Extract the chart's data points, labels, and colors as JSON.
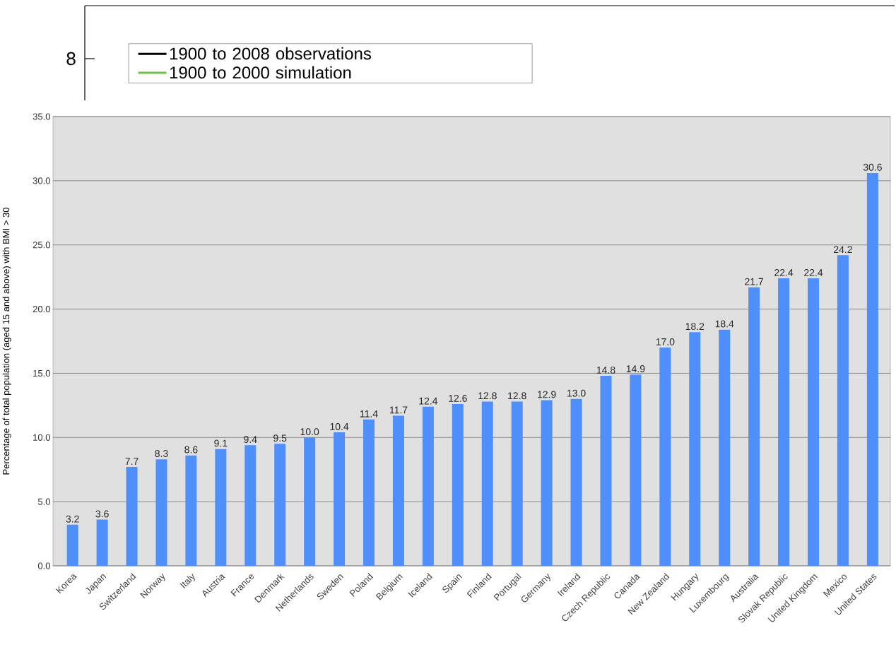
{
  "chart_data": [
    {
      "type": "other",
      "annotations": [
        "8"
      ],
      "legend": "top left",
      "series": [
        {
          "name": "1900 to 2008 observations",
          "color": "#000000"
        },
        {
          "name": "1900 to 2000 simulation",
          "color": "#6dbf4b"
        }
      ]
    },
    {
      "type": "bar",
      "ylabel": "Percentage of total population (aged 15 and above) with BMI > 30",
      "categories": [
        "Korea",
        "Japan",
        "Switzerland",
        "Norway",
        "Italy",
        "Austria",
        "France",
        "Denmark",
        "Netherlands",
        "Sweden",
        "Poland",
        "Belgium",
        "Iceland",
        "Spain",
        "Finland",
        "Portugal",
        "Germany",
        "Ireland",
        "Czech Republic",
        "Canada",
        "New Zealand",
        "Hungary",
        "Luxembourg",
        "Australia",
        "Slovak Republic",
        "United Kingdom",
        "Mexico",
        "United States"
      ],
      "values": [
        3.2,
        3.6,
        7.7,
        8.3,
        8.6,
        9.1,
        9.4,
        9.5,
        10.0,
        10.4,
        11.4,
        11.7,
        12.4,
        12.6,
        12.8,
        12.8,
        12.9,
        13.0,
        14.8,
        14.9,
        17.0,
        18.2,
        18.4,
        21.7,
        22.4,
        22.4,
        24.2,
        30.6
      ],
      "value_labels": [
        "3.2",
        "3.6",
        "7.7",
        "8.3",
        "8.6",
        "9.1",
        "9.4",
        "9.5",
        "10.0",
        "10.4",
        "11.4",
        "11.7",
        "12.4",
        "12.6",
        "12.8",
        "12.8",
        "12.9",
        "13.0",
        "14.8",
        "14.9",
        "17.0",
        "18.2",
        "18.4",
        "21.7",
        "22.4",
        "22.4",
        "24.2",
        "30.6"
      ],
      "color": "#4f8ffc",
      "grid": "y",
      "ylim": [
        0,
        35
      ],
      "yticks": [
        {
          "value": 0,
          "label": "0.0"
        },
        {
          "value": 5,
          "label": "5.0"
        },
        {
          "value": 10,
          "label": "10.0"
        },
        {
          "value": 15,
          "label": "15.0"
        },
        {
          "value": 20,
          "label": "20.0"
        },
        {
          "value": 25,
          "label": "25.0"
        },
        {
          "value": 30,
          "label": "30.0"
        },
        {
          "value": 35,
          "label": "35.0"
        }
      ]
    }
  ]
}
